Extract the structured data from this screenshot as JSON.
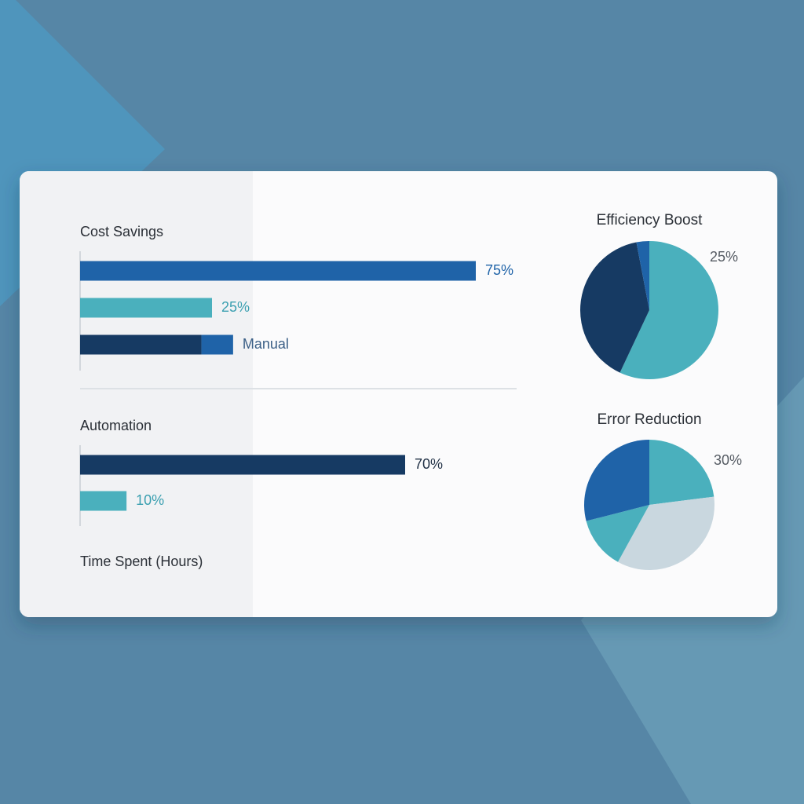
{
  "chart_data": [
    {
      "type": "bar",
      "title": "Cost Savings",
      "xlim": [
        0,
        75
      ],
      "bars": [
        {
          "segments": [
            {
              "value": 75,
              "color": "#1f63a8"
            }
          ],
          "label": "75%"
        },
        {
          "segments": [
            {
              "value": 25,
              "color": "#4ab0bd"
            }
          ],
          "label": "25%"
        },
        {
          "segments": [
            {
              "value": 23,
              "color": "#163a63"
            },
            {
              "value": 6,
              "color": "#1f63a8"
            }
          ],
          "label": "Manual"
        }
      ]
    },
    {
      "type": "bar",
      "title": "Automation",
      "xlabel": "Time Spent (Hours)",
      "xlim": [
        0,
        70
      ],
      "bars": [
        {
          "segments": [
            {
              "value": 70,
              "color": "#163a63"
            }
          ],
          "label": "70%"
        },
        {
          "segments": [
            {
              "value": 10,
              "color": "#4ab0bd"
            }
          ],
          "label": "10%"
        }
      ]
    },
    {
      "type": "pie",
      "title": "Efficiency Boost",
      "annotation": "25%",
      "values": [
        57,
        40,
        3
      ],
      "colors": [
        "#4ab0bd",
        "#163a63",
        "#1f63a8"
      ]
    },
    {
      "type": "pie",
      "title": "Error Reduction",
      "annotation": "30%",
      "values": [
        23,
        35,
        13,
        29
      ],
      "colors": [
        "#4ab0bd",
        "#c9d7df",
        "#4ab0bd",
        "#1f63a8"
      ]
    }
  ]
}
